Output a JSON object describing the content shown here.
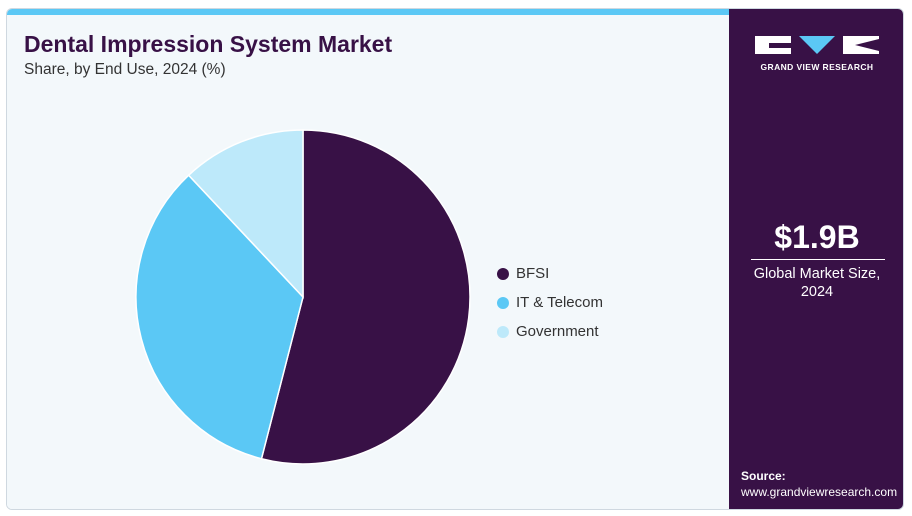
{
  "header": {
    "title": "Dental Impression System Market",
    "subtitle": "Share, by End Use, 2024 (%)"
  },
  "chart_data": {
    "type": "pie",
    "categories": [
      "BFSI",
      "IT & Telecom",
      "Government"
    ],
    "values": [
      54,
      34,
      12
    ],
    "colors": [
      "#381146",
      "#5bc8f5",
      "#bde9fa"
    ],
    "legend_position": "right",
    "start_angle": "12 o'clock",
    "direction": "clockwise"
  },
  "sidebar": {
    "logo_text": "GRAND VIEW RESEARCH",
    "market_value": "$1.9B",
    "market_caption_line1": "Global Market Size,",
    "market_caption_line2": "2024",
    "source_label": "Source:",
    "source_url": "www.grandviewresearch.com"
  },
  "colors": {
    "brand_dark": "#381146",
    "accent": "#5bc8f5",
    "panel_bg": "#f3f8fb"
  }
}
